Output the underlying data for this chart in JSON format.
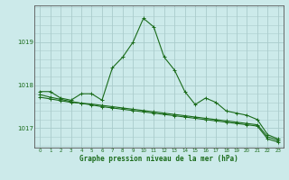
{
  "title": "Graphe pression niveau de la mer (hPa)",
  "background_color": "#cceaea",
  "grid_color": "#aacccc",
  "line_color": "#1a6b1a",
  "xlim": [
    -0.5,
    23.5
  ],
  "ylim": [
    1016.55,
    1019.85
  ],
  "yticks": [
    1017,
    1018,
    1019
  ],
  "xtick_labels": [
    "0",
    "1",
    "2",
    "3",
    "4",
    "5",
    "6",
    "7",
    "8",
    "9",
    "10",
    "11",
    "12",
    "13",
    "14",
    "15",
    "16",
    "17",
    "18",
    "19",
    "20",
    "21",
    "22",
    "23"
  ],
  "series1": [
    1017.85,
    1017.85,
    1017.7,
    1017.65,
    1017.8,
    1017.8,
    1017.65,
    1018.4,
    1018.65,
    1019.0,
    1019.55,
    1019.35,
    1018.65,
    1018.35,
    1017.85,
    1017.55,
    1017.7,
    1017.6,
    1017.4,
    1017.35,
    1017.3,
    1017.2,
    1016.85,
    1016.75
  ],
  "series2": [
    1017.72,
    1017.68,
    1017.64,
    1017.6,
    1017.58,
    1017.56,
    1017.53,
    1017.5,
    1017.47,
    1017.44,
    1017.41,
    1017.38,
    1017.35,
    1017.32,
    1017.29,
    1017.26,
    1017.23,
    1017.2,
    1017.17,
    1017.14,
    1017.11,
    1017.08,
    1016.8,
    1016.72
  ],
  "series3": [
    1017.78,
    1017.72,
    1017.67,
    1017.62,
    1017.58,
    1017.54,
    1017.5,
    1017.47,
    1017.44,
    1017.41,
    1017.38,
    1017.35,
    1017.32,
    1017.29,
    1017.26,
    1017.23,
    1017.2,
    1017.17,
    1017.14,
    1017.11,
    1017.08,
    1017.05,
    1016.75,
    1016.68
  ]
}
